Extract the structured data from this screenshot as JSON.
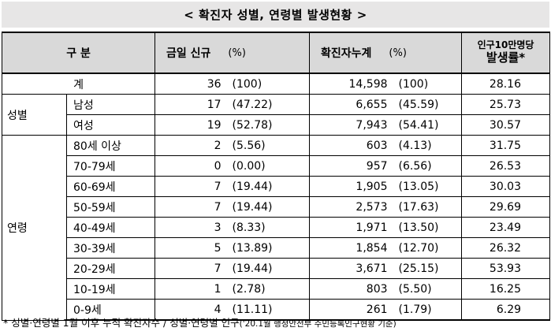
{
  "title": "< 확진자 성별, 연령별 발생현황 >",
  "header": {
    "category": "구 분",
    "new_cases": "금일 신규",
    "new_pct": "(%)",
    "cumulative": "확진자누계",
    "cum_pct": "(%)",
    "rate_line1": "인구10만명당",
    "rate_line2": "발생률*"
  },
  "total": {
    "label": "계",
    "new": "36",
    "new_pct": "(100)",
    "cum": "14,598",
    "cum_pct": "(100)",
    "rate": "28.16"
  },
  "gender": {
    "group_label": "성별",
    "rows": [
      {
        "label": "남성",
        "new": "17",
        "new_pct": "(47.22)",
        "cum": "6,655",
        "cum_pct": "(45.59)",
        "rate": "25.73"
      },
      {
        "label": "여성",
        "new": "19",
        "new_pct": "(52.78)",
        "cum": "7,943",
        "cum_pct": "(54.41)",
        "rate": "30.57"
      }
    ]
  },
  "age": {
    "group_label": "연령",
    "rows": [
      {
        "label": "80세 이상",
        "new": "2",
        "new_pct": "(5.56)",
        "cum": "603",
        "cum_pct": "(4.13)",
        "rate": "31.75"
      },
      {
        "label": "70-79세",
        "new": "0",
        "new_pct": "(0.00)",
        "cum": "957",
        "cum_pct": "(6.56)",
        "rate": "26.53"
      },
      {
        "label": "60-69세",
        "new": "7",
        "new_pct": "(19.44)",
        "cum": "1,905",
        "cum_pct": "(13.05)",
        "rate": "30.03"
      },
      {
        "label": "50-59세",
        "new": "7",
        "new_pct": "(19.44)",
        "cum": "2,573",
        "cum_pct": "(17.63)",
        "rate": "29.69"
      },
      {
        "label": "40-49세",
        "new": "3",
        "new_pct": "(8.33)",
        "cum": "1,971",
        "cum_pct": "(13.50)",
        "rate": "23.49"
      },
      {
        "label": "30-39세",
        "new": "5",
        "new_pct": "(13.89)",
        "cum": "1,854",
        "cum_pct": "(12.70)",
        "rate": "26.32"
      },
      {
        "label": "20-29세",
        "new": "7",
        "new_pct": "(19.44)",
        "cum": "3,671",
        "cum_pct": "(25.15)",
        "rate": "53.93"
      },
      {
        "label": "10-19세",
        "new": "1",
        "new_pct": "(2.78)",
        "cum": "803",
        "cum_pct": "(5.50)",
        "rate": "16.25"
      },
      {
        "label": "0-9세",
        "new": "4",
        "new_pct": "(11.11)",
        "cum": "261",
        "cum_pct": "(1.79)",
        "rate": "6.29"
      }
    ]
  },
  "footnote": {
    "main": "* 성별·연령별 1월 이후 누적 확진자수 / 성별·연령별 인구",
    "source": "('20.1월 행정안전부 주민등록인구현황 기준)"
  }
}
